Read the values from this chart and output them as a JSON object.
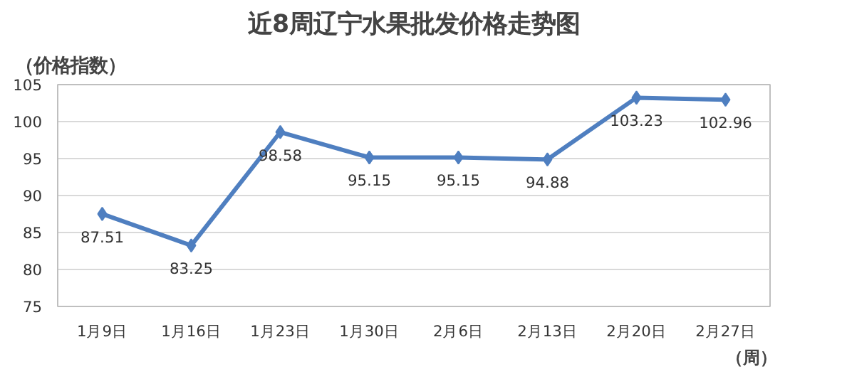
{
  "chart_data": {
    "type": "line",
    "title": "近8周辽宁水果批发价格走势图",
    "ylabel": "（价格指数）",
    "xlabel": "（周）",
    "categories": [
      "1月9日",
      "1月16日",
      "1月23日",
      "1月30日",
      "2月6日",
      "2月13日",
      "2月20日",
      "2月27日"
    ],
    "series": [
      {
        "color": "#4f7fc0",
        "values": [
          87.51,
          83.25,
          98.58,
          95.15,
          95.15,
          94.88,
          103.23,
          102.96
        ]
      }
    ],
    "ylim": [
      75,
      105
    ],
    "yticks": [
      75,
      80,
      85,
      90,
      95,
      100,
      105
    ],
    "grid": "y",
    "marker": "diamond",
    "line_style": "solid",
    "data_labels": true
  }
}
